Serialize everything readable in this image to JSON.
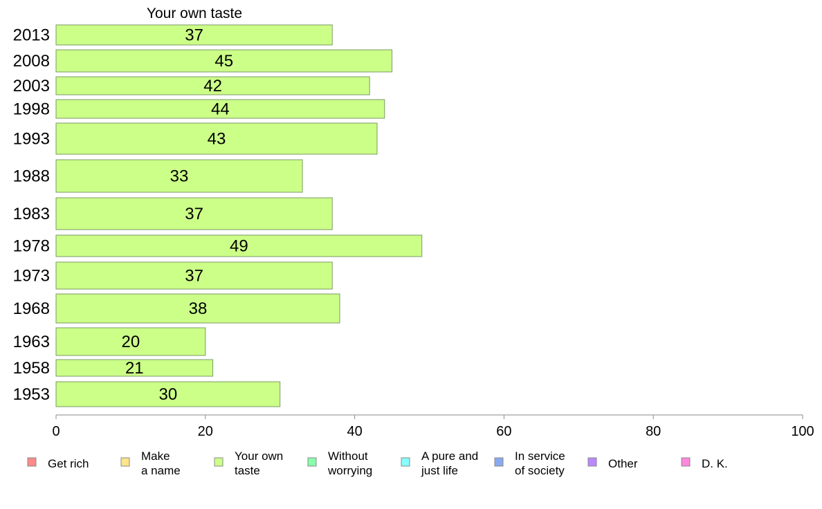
{
  "chart_data": {
    "type": "bar",
    "orientation": "horizontal",
    "title": "Your own taste",
    "categories": [
      "2013",
      "2008",
      "2003",
      "1998",
      "1993",
      "1988",
      "1983",
      "1978",
      "1973",
      "1968",
      "1963",
      "1958",
      "1953"
    ],
    "series": [
      {
        "name": "Your own taste",
        "values": [
          37,
          45,
          42,
          44,
          43,
          33,
          37,
          49,
          37,
          38,
          20,
          21,
          30
        ]
      }
    ],
    "data_labels": [
      "37",
      "45",
      "42",
      "44",
      "43",
      "33",
      "37",
      "49",
      "37",
      "38",
      "20",
      "21",
      "30"
    ],
    "xlim": [
      0,
      100
    ],
    "x_ticks": [
      "0",
      "20",
      "40",
      "60",
      "80",
      "100"
    ],
    "grid": false,
    "bar_color": "#ccff88",
    "bar_edge_color": "#7a9966",
    "legend": {
      "placement": "bottom",
      "items": [
        {
          "lines": [
            "Get rich"
          ],
          "color": "#ff8a8a"
        },
        {
          "lines": [
            "Make",
            "a name"
          ],
          "color": "#ffe48a"
        },
        {
          "lines": [
            "Your own",
            "taste"
          ],
          "color": "#ccff88"
        },
        {
          "lines": [
            "Without",
            "worrying"
          ],
          "color": "#88ffaa"
        },
        {
          "lines": [
            "A pure and",
            "just life"
          ],
          "color": "#88ffff"
        },
        {
          "lines": [
            "In service",
            "of society"
          ],
          "color": "#88aaee"
        },
        {
          "lines": [
            "Other"
          ],
          "color": "#bb88ff"
        },
        {
          "lines": [
            "D. K."
          ],
          "color": "#ff88dd"
        }
      ]
    }
  }
}
